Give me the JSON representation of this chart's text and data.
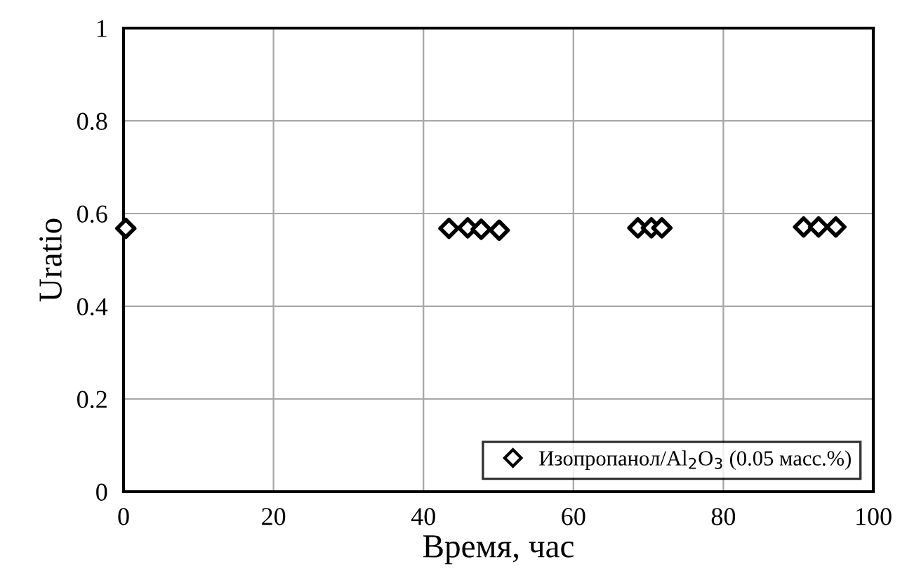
{
  "chart_data": {
    "type": "scatter",
    "xlabel": "Время, час",
    "ylabel": "Uratio",
    "xlim": [
      0,
      100
    ],
    "ylim": [
      0,
      1
    ],
    "xticks": [
      0,
      20,
      40,
      60,
      80,
      100
    ],
    "yticks": [
      0,
      0.2,
      0.4,
      0.6,
      0.8,
      1
    ],
    "grid": true,
    "legend": "bottom right",
    "marker": "diamond",
    "series": [
      {
        "name": "Изопропанол/Al$_{2}$O$_{3}$ (0.05 масс.%)",
        "color": "#000000",
        "x": [
          0.3,
          43.4,
          45.9,
          47.7,
          50.1,
          68.6,
          70.4,
          71.8,
          90.7,
          92.7,
          95.0
        ],
        "values": [
          0.568,
          0.568,
          0.569,
          0.566,
          0.564,
          0.569,
          0.569,
          0.569,
          0.571,
          0.571,
          0.571
        ]
      }
    ]
  }
}
